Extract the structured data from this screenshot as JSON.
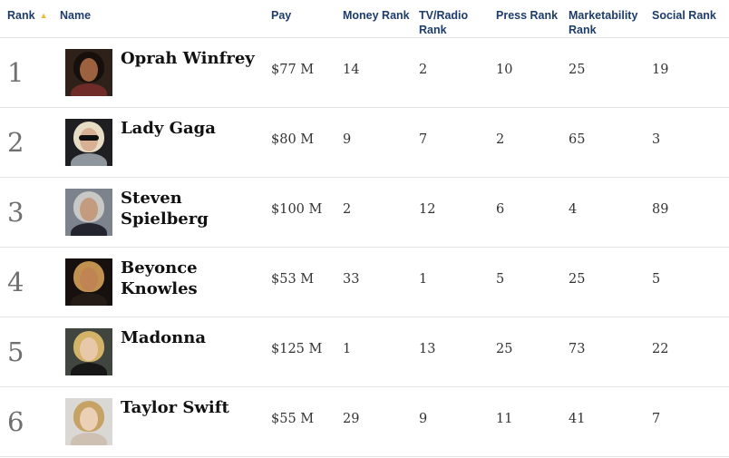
{
  "colors": {
    "header_text": "#1d3c6b",
    "sort_arrow": "#eebc33",
    "rank_number": "#6f6f6f",
    "row_divider": "#e3e3e3",
    "value_text": "#333333",
    "name_text": "#111111"
  },
  "table": {
    "sort_indicator": "▲",
    "sorted_column": "Rank",
    "sort_direction": "ascending",
    "columns": {
      "rank": "Rank",
      "name": "Name",
      "pay": "Pay",
      "money": "Money Rank",
      "tv_radio": "TV/Radio Rank",
      "press": "Press Rank",
      "marketability": "Marketability Rank",
      "social": "Social Rank"
    },
    "rows": [
      {
        "rank": "1",
        "name": "Oprah Winfrey",
        "pay": "$77 M",
        "money_rank": "14",
        "tv_radio_rank": "2",
        "press_rank": "10",
        "marketability_rank": "25",
        "social_rank": "19",
        "photo": {
          "bg": "#2e2119",
          "hair": "#170f0b",
          "skin": "#9c6240",
          "torso": "#6e2b28",
          "accent": ""
        }
      },
      {
        "rank": "2",
        "name": "Lady Gaga",
        "pay": "$80 M",
        "money_rank": "9",
        "tv_radio_rank": "7",
        "press_rank": "2",
        "marketability_rank": "65",
        "social_rank": "3",
        "photo": {
          "bg": "#1f1f22",
          "hair": "#e7dcc4",
          "skin": "#d8b094",
          "torso": "#8e959c",
          "accent": "#101010"
        }
      },
      {
        "rank": "3",
        "name": "Steven Spielberg",
        "pay": "$100 M",
        "money_rank": "2",
        "tv_radio_rank": "12",
        "press_rank": "6",
        "marketability_rank": "4",
        "social_rank": "89",
        "photo": {
          "bg": "#7d838c",
          "hair": "#c8c8c6",
          "skin": "#c49b7e",
          "torso": "#23242e",
          "accent": ""
        }
      },
      {
        "rank": "4",
        "name": "Beyonce\nKnowles",
        "pay": "$53 M",
        "money_rank": "33",
        "tv_radio_rank": "1",
        "press_rank": "5",
        "marketability_rank": "25",
        "social_rank": "5",
        "photo": {
          "bg": "#16100e",
          "hair": "#c1914f",
          "skin": "#c08354",
          "torso": "#241a16",
          "accent": ""
        }
      },
      {
        "rank": "5",
        "name": "Madonna",
        "pay": "$125 M",
        "money_rank": "1",
        "tv_radio_rank": "13",
        "press_rank": "25",
        "marketability_rank": "73",
        "social_rank": "22",
        "photo": {
          "bg": "#41453f",
          "hair": "#d3b368",
          "skin": "#e7c8a8",
          "torso": "#171717",
          "accent": ""
        }
      },
      {
        "rank": "6",
        "name": "Taylor Swift",
        "pay": "$55 M",
        "money_rank": "29",
        "tv_radio_rank": "9",
        "press_rank": "11",
        "marketability_rank": "41",
        "social_rank": "7",
        "photo": {
          "bg": "#d9d8d4",
          "hair": "#c7a265",
          "skin": "#ecd0b6",
          "torso": "#cfc0b4",
          "accent": ""
        }
      }
    ]
  }
}
